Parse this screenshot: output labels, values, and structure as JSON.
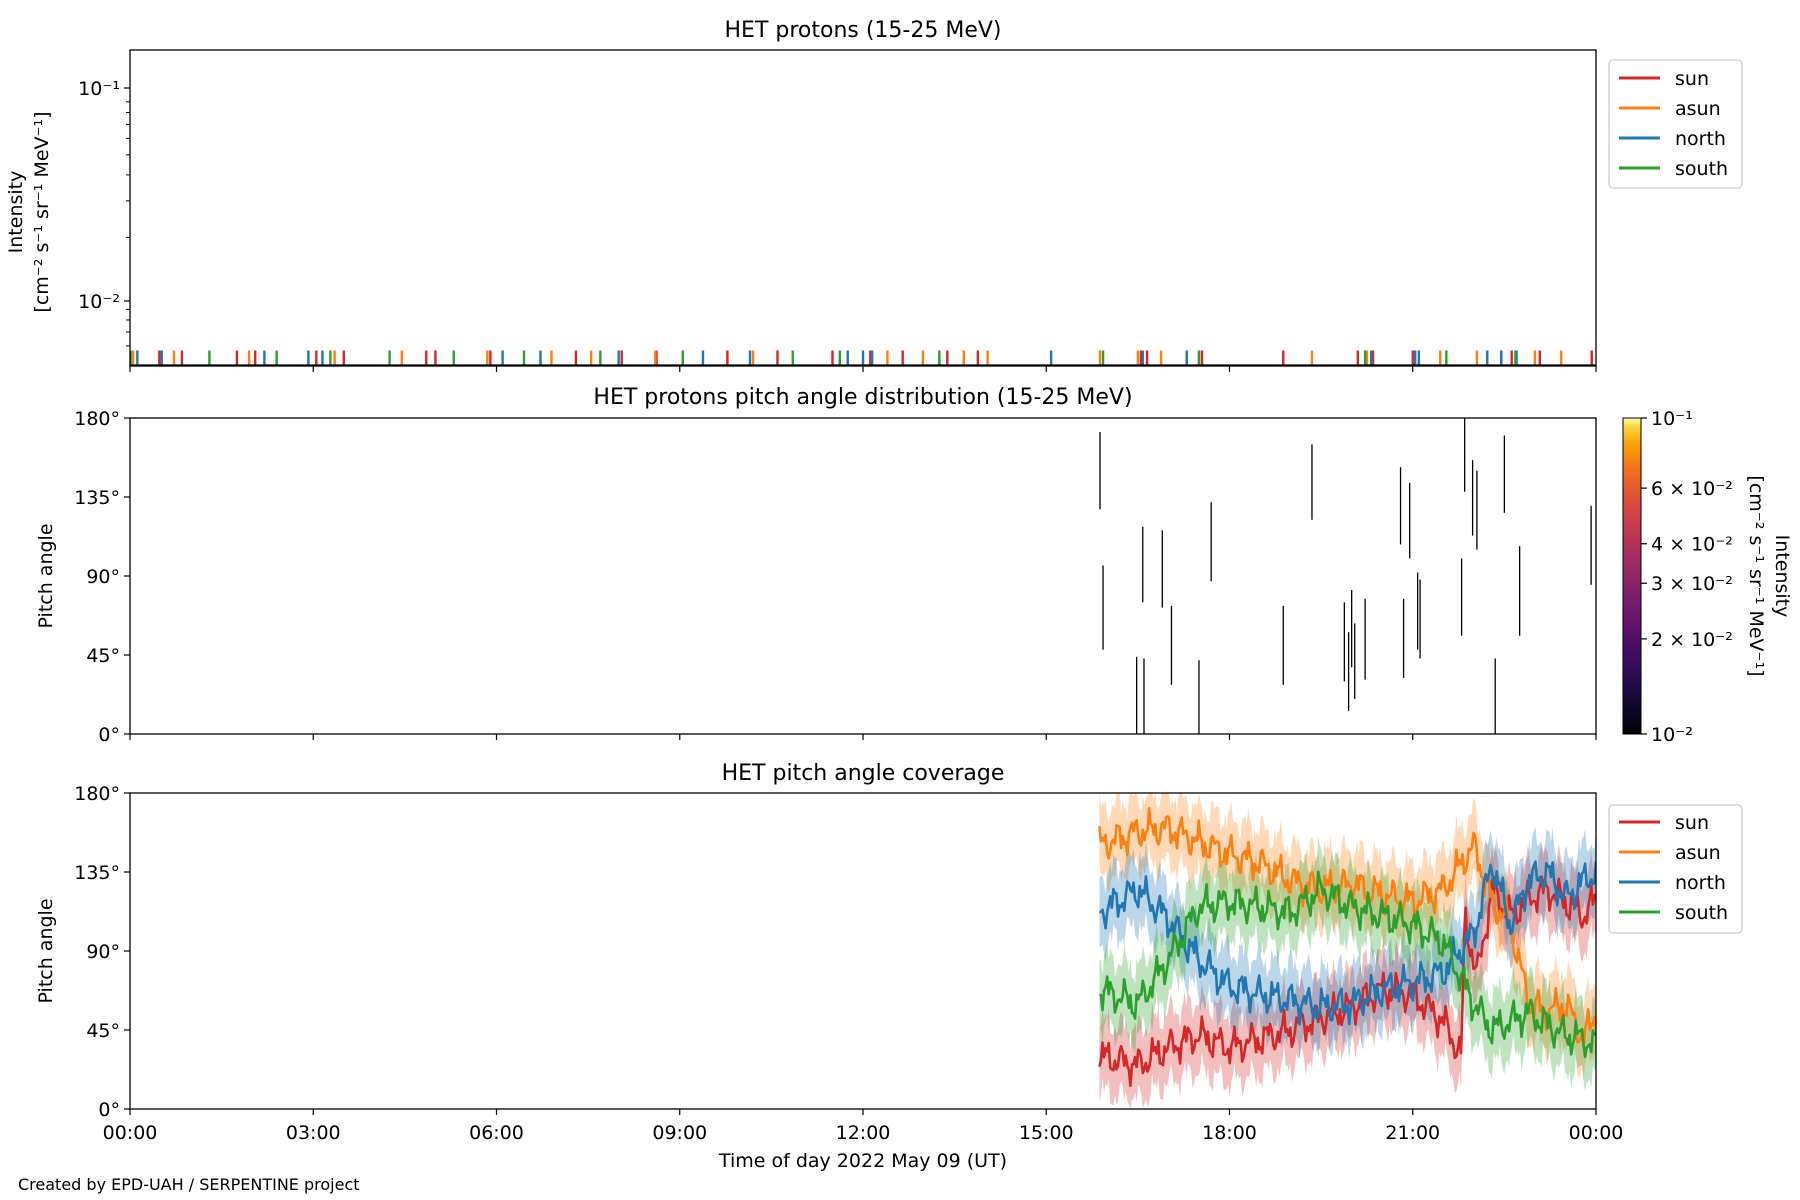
{
  "figure": {
    "footer": "Created by EPD-UAH / SERPENTINE project",
    "xlabel": "Time of day 2022 May 09 (UT)",
    "x_ticks": [
      "00:00",
      "03:00",
      "06:00",
      "09:00",
      "12:00",
      "15:00",
      "18:00",
      "21:00",
      "00:00"
    ]
  },
  "colors": {
    "sun": "#d62728",
    "asun": "#ff7f0e",
    "north": "#1f77b4",
    "south": "#2ca02c"
  },
  "chart_data": [
    {
      "type": "line",
      "title": "HET protons (15-25 MeV)",
      "ylabel_line1": "Intensity",
      "ylabel_line2": "[cm⁻² s⁻¹ sr⁻¹ MeV⁻¹]",
      "yscale": "log",
      "ylim": [
        0.0048,
        0.16
      ],
      "xlim_hours": [
        0,
        24
      ],
      "y_ticks": [
        "10⁻¹",
        "10⁻²"
      ],
      "legend": {
        "placement": "upper-right-outside",
        "entries": [
          "sun",
          "asun",
          "north",
          "south"
        ]
      },
      "baseline_value": 0.0048,
      "spike_value": 0.0057,
      "series": [
        {
          "name": "sun",
          "x": [
            0.48,
            0.85,
            1.75,
            2.05,
            3.05,
            3.5,
            4.85,
            5.0,
            5.9,
            7.3,
            8.05,
            8.62,
            9.78,
            10.6,
            11.5,
            12.12,
            12.65,
            13.38,
            13.88,
            16.55,
            16.65,
            17.55,
            18.88,
            20.1,
            20.35,
            21.0,
            22.45,
            22.62,
            23.08,
            23.93
          ]
        },
        {
          "name": "asun",
          "x": [
            0.05,
            0.72,
            1.95,
            3.35,
            4.45,
            5.85,
            6.9,
            7.55,
            8.6,
            9.05,
            10.2,
            12.4,
            12.98,
            13.65,
            14.04,
            15.88,
            16.5,
            16.88,
            17.5,
            19.35,
            20.25,
            21.45,
            22.05,
            23.0,
            23.43
          ]
        },
        {
          "name": "north",
          "x": [
            0.12,
            0.52,
            2.2,
            2.92,
            3.15,
            6.1,
            6.72,
            8.0,
            9.38,
            10.15,
            11.75,
            12.0,
            12.15,
            15.08,
            16.58,
            17.3,
            20.32,
            21.04,
            21.1,
            22.22,
            22.45,
            22.7
          ]
        },
        {
          "name": "south",
          "x": [
            0.01,
            1.3,
            2.4,
            3.28,
            4.25,
            5.3,
            6.45,
            7.7,
            9.05,
            10.85,
            11.62,
            13.25,
            15.93,
            17.5,
            20.22,
            21.55,
            22.68
          ]
        }
      ]
    },
    {
      "type": "heatmap",
      "title": "HET protons pitch angle distribution (15-25 MeV)",
      "ylabel": "Pitch angle",
      "ylim": [
        0,
        180
      ],
      "y_ticks": [
        "180°",
        "135°",
        "90°",
        "45°",
        "0°"
      ],
      "xlim_hours": [
        0,
        24
      ],
      "colorbar": {
        "label": "Intensity\n[cm⁻² s⁻¹ sr⁻¹ MeV⁻¹]",
        "label_line1": "Intensity",
        "label_line2": "[cm⁻² s⁻¹ sr⁻¹ MeV⁻¹]",
        "scale": "log",
        "range": [
          0.01,
          0.1
        ],
        "colormap": "inferno",
        "ticks": [
          {
            "value": 0.1,
            "label": "10⁻¹"
          },
          {
            "value": 0.06,
            "label": "6 × 10⁻²"
          },
          {
            "value": 0.04,
            "label": "4 × 10⁻²"
          },
          {
            "value": 0.03,
            "label": "3 × 10⁻²"
          },
          {
            "value": 0.02,
            "label": "2 × 10⁻²"
          },
          {
            "value": 0.01,
            "label": "10⁻²"
          }
        ]
      },
      "cells": [
        {
          "t": 15.88,
          "pa": [
            128,
            172
          ]
        },
        {
          "t": 15.93,
          "pa": [
            48,
            96
          ]
        },
        {
          "t": 16.48,
          "pa": [
            0,
            44
          ]
        },
        {
          "t": 16.58,
          "pa": [
            75,
            118
          ]
        },
        {
          "t": 16.6,
          "pa": [
            0,
            43
          ]
        },
        {
          "t": 16.9,
          "pa": [
            72,
            116
          ]
        },
        {
          "t": 17.05,
          "pa": [
            28,
            73
          ]
        },
        {
          "t": 17.5,
          "pa": [
            0,
            42
          ]
        },
        {
          "t": 17.7,
          "pa": [
            87,
            132
          ]
        },
        {
          "t": 18.88,
          "pa": [
            28,
            73
          ]
        },
        {
          "t": 19.35,
          "pa": [
            122,
            165
          ]
        },
        {
          "t": 19.88,
          "pa": [
            30,
            75
          ]
        },
        {
          "t": 19.95,
          "pa": [
            13,
            58
          ]
        },
        {
          "t": 20.0,
          "pa": [
            38,
            82
          ]
        },
        {
          "t": 20.05,
          "pa": [
            20,
            63
          ]
        },
        {
          "t": 20.22,
          "pa": [
            31,
            77
          ]
        },
        {
          "t": 20.8,
          "pa": [
            108,
            152
          ]
        },
        {
          "t": 20.85,
          "pa": [
            32,
            77
          ]
        },
        {
          "t": 20.95,
          "pa": [
            100,
            143
          ]
        },
        {
          "t": 21.08,
          "pa": [
            48,
            92
          ]
        },
        {
          "t": 21.12,
          "pa": [
            43,
            88
          ]
        },
        {
          "t": 21.8,
          "pa": [
            56,
            100
          ]
        },
        {
          "t": 21.85,
          "pa": [
            138,
            180
          ]
        },
        {
          "t": 21.98,
          "pa": [
            113,
            156
          ]
        },
        {
          "t": 22.05,
          "pa": [
            105,
            150
          ]
        },
        {
          "t": 22.35,
          "pa": [
            0,
            43
          ]
        },
        {
          "t": 22.5,
          "pa": [
            126,
            170
          ]
        },
        {
          "t": 22.75,
          "pa": [
            56,
            107
          ]
        },
        {
          "t": 23.92,
          "pa": [
            85,
            130
          ]
        }
      ]
    },
    {
      "type": "area",
      "title": "HET pitch angle coverage",
      "ylabel": "Pitch angle",
      "ylim": [
        0,
        180
      ],
      "y_ticks": [
        "180°",
        "135°",
        "90°",
        "45°",
        "0°"
      ],
      "xlim_hours": [
        0,
        24
      ],
      "legend": {
        "placement": "upper-right-outside",
        "entries": [
          "sun",
          "asun",
          "north",
          "south"
        ]
      },
      "band_halfwidth_deg": 20,
      "series": [
        {
          "name": "sun",
          "t": [
            15.87,
            16.5,
            17.0,
            17.5,
            18.0,
            18.5,
            19.0,
            19.5,
            20.0,
            20.5,
            21.0,
            21.5,
            21.8,
            21.85,
            22.05,
            22.3,
            22.6,
            22.9,
            23.2,
            23.5,
            23.8,
            24.0
          ],
          "pa": [
            30,
            25,
            35,
            42,
            35,
            40,
            45,
            52,
            58,
            68,
            65,
            50,
            30,
            110,
            75,
            125,
            110,
            120,
            125,
            118,
            110,
            120
          ]
        },
        {
          "name": "asun",
          "t": [
            15.87,
            16.5,
            17.0,
            17.5,
            18.0,
            18.5,
            19.0,
            19.5,
            20.0,
            20.5,
            21.0,
            21.5,
            22.0,
            22.3,
            22.6,
            22.9,
            23.2,
            23.5,
            23.8,
            24.0
          ],
          "pa": [
            150,
            158,
            160,
            152,
            145,
            140,
            130,
            125,
            128,
            122,
            118,
            125,
            150,
            118,
            105,
            60,
            55,
            60,
            40,
            55
          ]
        },
        {
          "name": "north",
          "t": [
            15.87,
            16.5,
            17.0,
            17.5,
            18.0,
            18.5,
            19.0,
            19.5,
            20.0,
            20.5,
            21.0,
            21.5,
            22.0,
            22.3,
            22.6,
            22.9,
            23.2,
            23.5,
            23.8,
            24.0
          ],
          "pa": [
            112,
            125,
            108,
            85,
            70,
            65,
            62,
            58,
            60,
            68,
            72,
            78,
            100,
            140,
            105,
            130,
            135,
            120,
            130,
            135
          ]
        },
        {
          "name": "south",
          "t": [
            15.87,
            16.5,
            17.0,
            17.5,
            18.0,
            18.5,
            19.0,
            19.5,
            20.0,
            20.5,
            21.0,
            21.5,
            22.0,
            22.3,
            22.6,
            22.9,
            23.2,
            23.5,
            23.8,
            24.0
          ],
          "pa": [
            68,
            60,
            85,
            115,
            118,
            115,
            112,
            125,
            115,
            110,
            105,
            95,
            60,
            45,
            50,
            55,
            48,
            42,
            40,
            35
          ]
        }
      ]
    }
  ]
}
